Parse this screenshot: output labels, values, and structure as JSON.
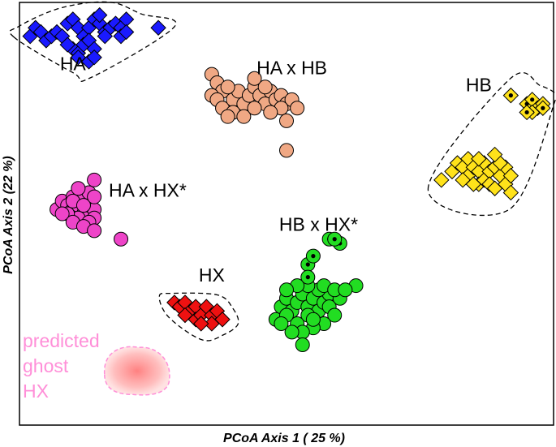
{
  "chart_data": {
    "type": "scatter",
    "xlabel": "PCoA Axis 1 ( 25 %)",
    "ylabel": "PCoA Axis 2 (22 %)",
    "xlim": [
      0,
      100
    ],
    "ylim": [
      0,
      100
    ],
    "grid": false,
    "legend": "none",
    "ghost": {
      "label_lines": [
        "predicted",
        "ghost",
        "HX"
      ],
      "color": "#ff8fd8",
      "center": [
        22,
        13
      ]
    },
    "series": [
      {
        "name": "HA",
        "marker": "diamond",
        "color": "#1a1aff",
        "hull": true,
        "label_pos": [
          10,
          84
        ],
        "points": [
          [
            2,
            92
          ],
          [
            3,
            94
          ],
          [
            4,
            93
          ],
          [
            5,
            91
          ],
          [
            6,
            92
          ],
          [
            7,
            93
          ],
          [
            8,
            92
          ],
          [
            9,
            95
          ],
          [
            10,
            96
          ],
          [
            11,
            94
          ],
          [
            12,
            92
          ],
          [
            13,
            94
          ],
          [
            14,
            96
          ],
          [
            15,
            95
          ],
          [
            16,
            93
          ],
          [
            17,
            94
          ],
          [
            18,
            95
          ],
          [
            19,
            94
          ],
          [
            20,
            96
          ],
          [
            26,
            94
          ],
          [
            10,
            89
          ],
          [
            11,
            88
          ],
          [
            12,
            90
          ],
          [
            13,
            91
          ],
          [
            14,
            89
          ],
          [
            9,
            90
          ],
          [
            15,
            97
          ],
          [
            16,
            92
          ],
          [
            19,
            92
          ],
          [
            20,
            93
          ],
          [
            13,
            86
          ],
          [
            14,
            87
          ],
          [
            11,
            87
          ]
        ]
      },
      {
        "name": "HA x HB",
        "marker": "circle",
        "color": "#f0a884",
        "hull": false,
        "label_pos": [
          51,
          83
        ],
        "points": [
          [
            36,
            83
          ],
          [
            37,
            81
          ],
          [
            38,
            79
          ],
          [
            36,
            78
          ],
          [
            37,
            77
          ],
          [
            38,
            75
          ],
          [
            40,
            77
          ],
          [
            41,
            79
          ],
          [
            39,
            80
          ],
          [
            42,
            76
          ],
          [
            43,
            78
          ],
          [
            44,
            80
          ],
          [
            45,
            78
          ],
          [
            46,
            76
          ],
          [
            47,
            79
          ],
          [
            48,
            77
          ],
          [
            49,
            78
          ],
          [
            50,
            76
          ],
          [
            51,
            77
          ],
          [
            49,
            75
          ],
          [
            47,
            74
          ],
          [
            40,
            74
          ],
          [
            42,
            73
          ],
          [
            39,
            73
          ],
          [
            44,
            75
          ],
          [
            46,
            80
          ],
          [
            44,
            82
          ],
          [
            50,
            72
          ],
          [
            52,
            75
          ],
          [
            50,
            65
          ]
        ]
      },
      {
        "name": "HB",
        "marker": "diamond",
        "color": "#ffe21a",
        "hull": true,
        "label_pos": [
          86,
          79
        ],
        "points": [
          [
            79,
            58
          ],
          [
            81,
            60
          ],
          [
            82,
            62
          ],
          [
            83,
            61
          ],
          [
            84,
            63
          ],
          [
            84,
            59
          ],
          [
            85,
            61
          ],
          [
            86,
            60
          ],
          [
            86,
            57
          ],
          [
            87,
            62
          ],
          [
            87,
            58
          ],
          [
            88,
            60
          ],
          [
            88,
            57
          ],
          [
            89,
            61
          ],
          [
            89,
            56
          ],
          [
            90,
            59
          ],
          [
            91,
            61
          ],
          [
            91,
            57
          ],
          [
            92,
            59
          ],
          [
            92,
            55
          ],
          [
            85,
            57
          ],
          [
            83,
            58
          ],
          [
            90,
            62
          ],
          [
            89,
            64
          ],
          [
            86,
            63
          ]
        ],
        "dot_points": [
          [
            92,
            78
          ],
          [
            95,
            76
          ],
          [
            96,
            77
          ],
          [
            97,
            75
          ],
          [
            96,
            74
          ],
          [
            98,
            76
          ],
          [
            98,
            75
          ],
          [
            95,
            74
          ]
        ]
      },
      {
        "name": "HA x HX*",
        "marker": "circle",
        "color": "#ee44c8",
        "hull": false,
        "label_pos": [
          24,
          54
        ],
        "points": [
          [
            7,
            51
          ],
          [
            8,
            53
          ],
          [
            9,
            52
          ],
          [
            10,
            54
          ],
          [
            10,
            51
          ],
          [
            11,
            52
          ],
          [
            12,
            54
          ],
          [
            12,
            50
          ],
          [
            13,
            52
          ],
          [
            13,
            55
          ],
          [
            14,
            51
          ],
          [
            11,
            49
          ],
          [
            9,
            50
          ],
          [
            8,
            50
          ],
          [
            10,
            53
          ],
          [
            12,
            52
          ],
          [
            14,
            54
          ],
          [
            14,
            49
          ],
          [
            13,
            48
          ],
          [
            10,
            48
          ],
          [
            12,
            47
          ],
          [
            11,
            56
          ],
          [
            14,
            58
          ],
          [
            14,
            46
          ],
          [
            19,
            44
          ]
        ]
      },
      {
        "name": "HB x HX*",
        "marker": "circle",
        "color": "#22dd22",
        "hull": false,
        "label_pos": [
          56,
          46
        ],
        "points": [
          [
            48,
            25
          ],
          [
            49,
            28
          ],
          [
            50,
            30
          ],
          [
            51,
            27
          ],
          [
            52,
            29
          ],
          [
            53,
            31
          ],
          [
            54,
            28
          ],
          [
            55,
            30
          ],
          [
            56,
            27
          ],
          [
            57,
            29
          ],
          [
            58,
            31
          ],
          [
            56,
            32
          ],
          [
            54,
            26
          ],
          [
            52,
            24
          ],
          [
            50,
            26
          ],
          [
            58,
            28
          ],
          [
            60,
            30
          ],
          [
            59,
            26
          ],
          [
            57,
            24
          ],
          [
            55,
            23
          ],
          [
            53,
            22
          ],
          [
            51,
            22
          ],
          [
            54,
            33
          ],
          [
            52,
            33
          ],
          [
            50,
            32
          ],
          [
            63,
            33
          ],
          [
            53,
            19
          ],
          [
            49,
            24
          ],
          [
            57,
            33
          ],
          [
            59,
            32
          ],
          [
            61,
            32
          ],
          [
            55,
            25
          ]
        ],
        "dot_points": [
          [
            54,
            38
          ],
          [
            55,
            40
          ],
          [
            54,
            35
          ],
          [
            58,
            44
          ],
          [
            60,
            43
          ],
          [
            59,
            44
          ]
        ]
      },
      {
        "name": "HX",
        "marker": "diamond",
        "color": "#ee1111",
        "hull": true,
        "label_pos": [
          36,
          34
        ],
        "points": [
          [
            29,
            29
          ],
          [
            30,
            28
          ],
          [
            31,
            29
          ],
          [
            32,
            27
          ],
          [
            33,
            28
          ],
          [
            33,
            25
          ],
          [
            34,
            26
          ],
          [
            35,
            28
          ],
          [
            36,
            26
          ],
          [
            36,
            24
          ],
          [
            37,
            27
          ],
          [
            38,
            25
          ],
          [
            31,
            26
          ],
          [
            34,
            24
          ]
        ]
      }
    ]
  }
}
